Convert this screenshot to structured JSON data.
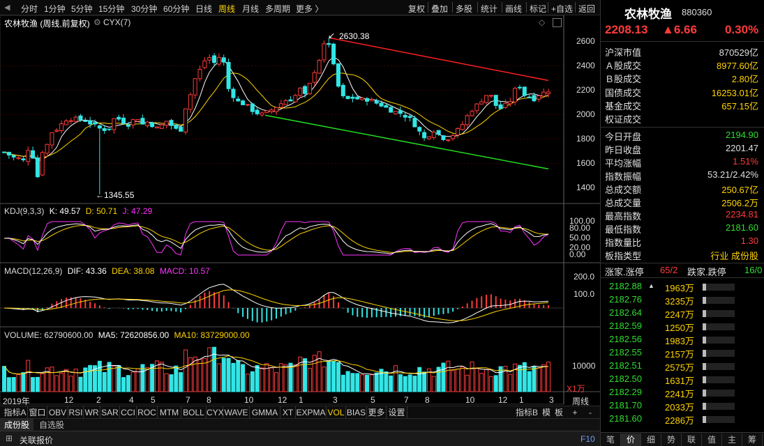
{
  "top_menu": [
    "分时",
    "1分钟",
    "5分钟",
    "15分钟",
    "30分钟",
    "60分钟",
    "日线",
    "周线",
    "月线",
    "多周期",
    "更多 〉"
  ],
  "top_menu_active": "周线",
  "toolbar": [
    "复权",
    "叠加",
    "多股",
    "统计",
    "画线",
    "标记",
    "+自选",
    "返回"
  ],
  "main_chart": {
    "title": "农林牧渔 (周线,前复权)",
    "indicator": "CYX(7)",
    "y_ticks": [
      "2600",
      "2400",
      "2200",
      "2000",
      "1800",
      "1600",
      "1400"
    ],
    "high_label": "2630.38",
    "low_label": "1345.55",
    "ylim": [
      1300,
      2700
    ]
  },
  "kdj": {
    "title": "KDJ(9,3,3)",
    "k": "K: 49.57",
    "d": "D: 50.71",
    "j": "J: 47.29",
    "y_ticks": [
      "100.00",
      "80.00",
      "50.00",
      "20.00",
      "0.00"
    ]
  },
  "macd": {
    "title": "MACD(12,26,9)",
    "dif": "DIF: 43.36",
    "dea": "DEA: 38.08",
    "macd": "MACD: 10.57",
    "y_ticks": [
      "200.0",
      "100.0"
    ]
  },
  "volume": {
    "title": "VOLUME: 62790600.00",
    "ma5": "MA5: 72620856.00",
    "ma10": "MA10: 83729000.00",
    "y_ticks": [
      "10000"
    ],
    "unit": "X1万"
  },
  "x_axis": [
    "2019年",
    "12",
    "2",
    "4",
    "5",
    "7",
    "8",
    "10",
    "12",
    "1",
    "3",
    "5",
    "7",
    "8",
    "10",
    "12",
    "1",
    "3"
  ],
  "period_label": "周线",
  "indicator_tabs": [
    "指标A",
    "窗口",
    "OBV",
    "RSI",
    "WR",
    "SAR",
    "CCI",
    "ROC",
    "MTM",
    "BOLL",
    "CYX",
    "WAVE",
    "GMMA",
    "XT",
    "EXPMA",
    "VOL",
    "BIAS",
    "更多",
    "设置"
  ],
  "indicator_active": "VOL",
  "indicator_right": [
    "指标B",
    "模",
    "板",
    "+",
    "-"
  ],
  "bottom_tabs": [
    "成份股",
    "自选股"
  ],
  "status_bar": {
    "left": "关联报价",
    "right": "F10"
  },
  "quote": {
    "name": "农林牧渔",
    "code": "880360",
    "price": "2208.13",
    "change": "▲6.66",
    "pct": "0.30%",
    "stats": [
      {
        "label": "沪深市值",
        "value": "870529亿",
        "color": "#e0e0e0"
      },
      {
        "label": "Ａ股成交",
        "value": "8977.60亿",
        "color": "#ffd400"
      },
      {
        "label": "Ｂ股成交",
        "value": "2.80亿",
        "color": "#ffd400"
      },
      {
        "label": "国债成交",
        "value": "16253.01亿",
        "color": "#ffd400"
      },
      {
        "label": "基金成交",
        "value": "657.15亿",
        "color": "#ffd400"
      },
      {
        "label": "权证成交",
        "value": "",
        "color": "#ffd400"
      }
    ],
    "stats2": [
      {
        "label": "今日开盘",
        "value": "2194.90",
        "color": "#33dd33"
      },
      {
        "label": "昨日收盘",
        "value": "2201.47",
        "color": "#e0e0e0"
      },
      {
        "label": "平均涨幅",
        "value": "1.51%",
        "color": "#ff3b3b"
      },
      {
        "label": "指数振幅",
        "value": "53.21/2.42%",
        "color": "#e0e0e0"
      },
      {
        "label": "总成交额",
        "value": "250.67亿",
        "color": "#ffd400"
      },
      {
        "label": "总成交量",
        "value": "2506.2万",
        "color": "#ffd400"
      },
      {
        "label": "最高指数",
        "value": "2234.81",
        "color": "#ff3b3b"
      },
      {
        "label": "最低指数",
        "value": "2181.60",
        "color": "#33dd33"
      },
      {
        "label": "指数量比",
        "value": "1.30",
        "color": "#ff3b3b"
      },
      {
        "label": "板指类型",
        "value": "行业 成份股",
        "color": "#ffd400"
      }
    ],
    "rise_label": "涨家.涨停",
    "rise_value": "65/2",
    "fall_label": "跌家.跌停",
    "fall_value": "16/0",
    "ticks": [
      {
        "price": "2182.88",
        "vol": "1963万",
        "arrow": "▲"
      },
      {
        "price": "2182.76",
        "vol": "3235万"
      },
      {
        "price": "2182.64",
        "vol": "2247万"
      },
      {
        "price": "2182.59",
        "vol": "1250万"
      },
      {
        "price": "2182.56",
        "vol": "1983万"
      },
      {
        "price": "2182.55",
        "vol": "2157万"
      },
      {
        "price": "2182.51",
        "vol": "2575万"
      },
      {
        "price": "2182.50",
        "vol": "1631万"
      },
      {
        "price": "2182.29",
        "vol": "2241万"
      },
      {
        "price": "2181.70",
        "vol": "2033万"
      },
      {
        "price": "2181.60",
        "vol": "2286万"
      }
    ],
    "bottom_tabs": [
      "笔",
      "价",
      "细",
      "势",
      "联",
      "值",
      "主",
      "筹"
    ]
  },
  "colors": {
    "up": "#ff3b3b",
    "down": "#33e6e6",
    "ma_white": "#ffffff",
    "ma_yellow": "#ffd400",
    "ma_magenta": "#ff33ff",
    "channel_red": "#ff2020",
    "channel_green": "#22dd22"
  }
}
